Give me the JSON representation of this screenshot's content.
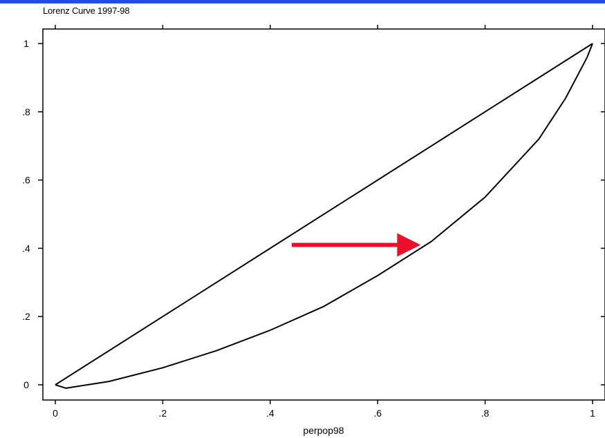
{
  "chart_data": {
    "type": "line",
    "title": "Lorenz Curve 1997-98",
    "xlabel": "perpop98",
    "ylabel": "",
    "xlim": [
      0,
      1
    ],
    "ylim": [
      0,
      1
    ],
    "x_ticks": [
      "0",
      ".2",
      ".4",
      ".6",
      ".8",
      "1"
    ],
    "y_ticks": [
      "0",
      ".2",
      ".4",
      ".6",
      ".8",
      "1"
    ],
    "grid": false,
    "series": [
      {
        "points": [
          [
            0,
            0
          ],
          [
            0.2,
            0.2
          ],
          [
            0.4,
            0.4
          ],
          [
            0.6,
            0.6
          ],
          [
            0.8,
            0.8
          ],
          [
            1,
            1
          ]
        ]
      },
      {
        "points": [
          [
            0,
            0
          ],
          [
            0.02,
            -0.01
          ],
          [
            0.1,
            0.01
          ],
          [
            0.2,
            0.05
          ],
          [
            0.3,
            0.1
          ],
          [
            0.4,
            0.16
          ],
          [
            0.5,
            0.23
          ],
          [
            0.6,
            0.32
          ],
          [
            0.7,
            0.42
          ],
          [
            0.8,
            0.55
          ],
          [
            0.9,
            0.72
          ],
          [
            0.95,
            0.84
          ],
          [
            0.99,
            0.96
          ],
          [
            1,
            1
          ]
        ]
      }
    ],
    "annotations": [
      {
        "type": "arrow",
        "color": "#e8102a",
        "from": [
          0.44,
          0.41
        ],
        "to": [
          0.68,
          0.41
        ]
      }
    ]
  }
}
